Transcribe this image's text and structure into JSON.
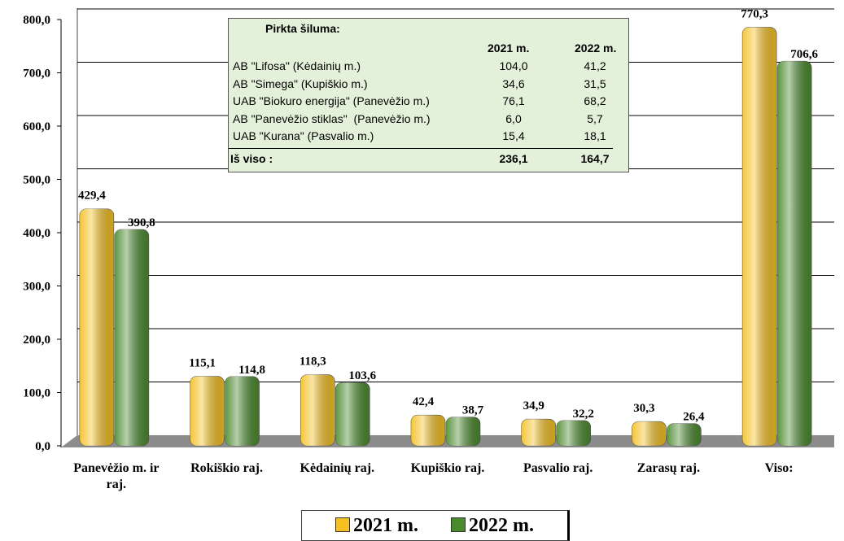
{
  "chart_data": {
    "type": "bar",
    "categories": [
      "Panevėžio m. ir raj.",
      "Rokiškio raj.",
      "Kėdainių raj.",
      "Kupiškio raj.",
      "Pasvalio raj.",
      "Zarasų raj.",
      "Viso:"
    ],
    "series": [
      {
        "name": "2021 m.",
        "color": "#f5c020",
        "values": [
          429.4,
          115.1,
          118.3,
          42.4,
          34.9,
          30.3,
          770.3
        ],
        "value_labels": [
          "429,4",
          "115,1",
          "118,3",
          "42,4",
          "34,9",
          "30,3",
          "770,3"
        ]
      },
      {
        "name": "2022 m.",
        "color": "#4a8a2c",
        "values": [
          390.8,
          114.8,
          103.6,
          38.7,
          32.2,
          26.4,
          706.6
        ],
        "value_labels": [
          "390,8",
          "114,8",
          "103,6",
          "38,7",
          "32,2",
          "26,4",
          "706,6"
        ]
      }
    ],
    "ylim": [
      0,
      800
    ],
    "yticks": [
      {
        "value": 0,
        "label": "0,0"
      },
      {
        "value": 100,
        "label": "100,0"
      },
      {
        "value": 200,
        "label": "200,0"
      },
      {
        "value": 300,
        "label": "300,0"
      },
      {
        "value": 400,
        "label": "400,0"
      },
      {
        "value": 500,
        "label": "500,0"
      },
      {
        "value": 600,
        "label": "600,0"
      },
      {
        "value": 700,
        "label": "700,0"
      },
      {
        "value": 800,
        "label": "800,0"
      }
    ],
    "grid": true,
    "legend": "bottom"
  },
  "table": {
    "title": "Pirkta šiluma:",
    "columns": [
      "2021 m.",
      "2022 m."
    ],
    "rows": [
      [
        "AB \"Lifosa\" (Kėdainių m.)",
        "104,0",
        "41,2"
      ],
      [
        "AB \"Simega\" (Kupiškio m.)",
        "34,6",
        "31,5"
      ],
      [
        "UAB \"Biokuro energija\" (Panevėžio m.)",
        "76,1",
        "68,2"
      ],
      [
        "AB \"Panevėžio stiklas\"  (Panevėžio m.)",
        "6,0",
        "5,7"
      ],
      [
        "UAB \"Kurana\" (Pasvalio m.)",
        "15,4",
        "18,1"
      ]
    ],
    "total": [
      "Iš viso :",
      "236,1",
      "164,7"
    ]
  }
}
